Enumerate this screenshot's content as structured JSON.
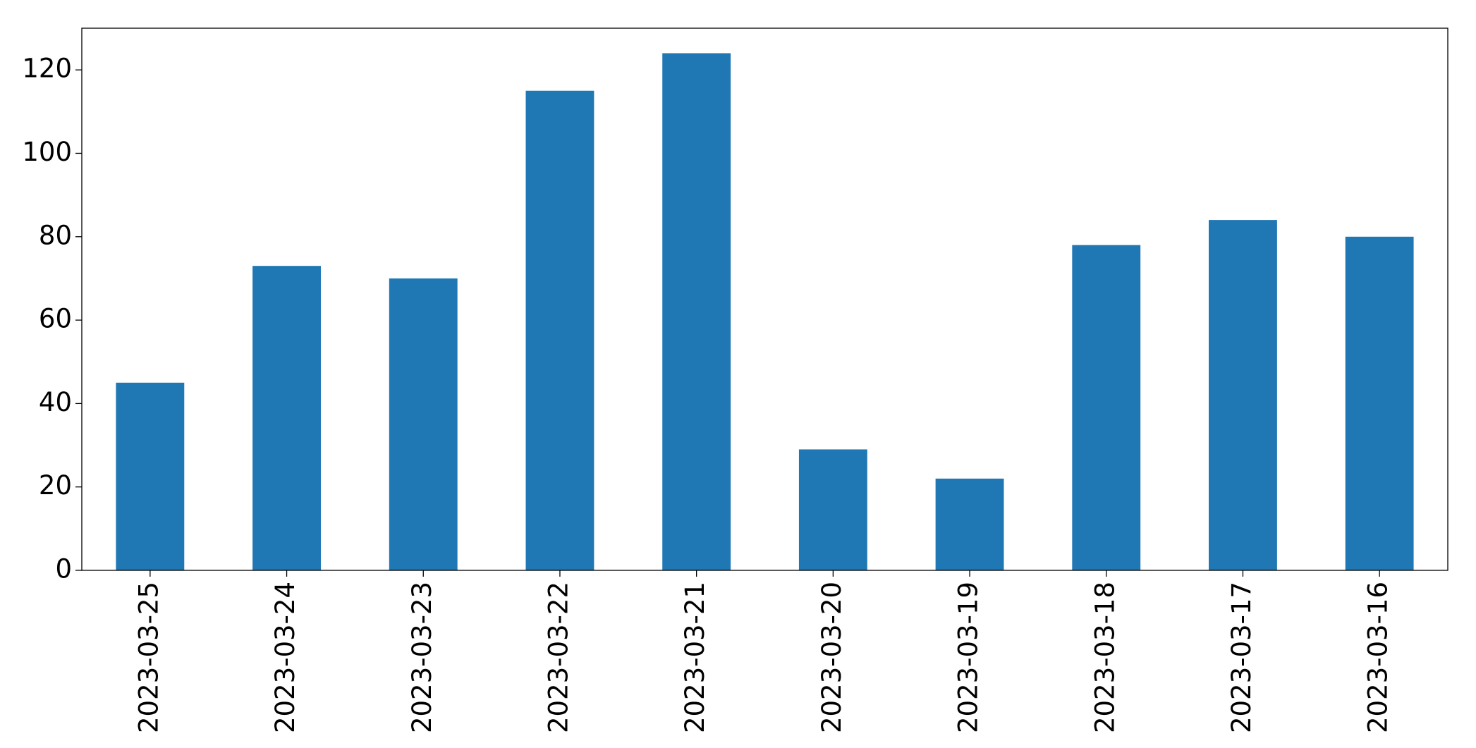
{
  "chart_data": {
    "type": "bar",
    "categories": [
      "2023-03-25",
      "2023-03-24",
      "2023-03-23",
      "2023-03-22",
      "2023-03-21",
      "2023-03-20",
      "2023-03-19",
      "2023-03-18",
      "2023-03-17",
      "2023-03-16"
    ],
    "values": [
      45,
      73,
      70,
      115,
      124,
      29,
      22,
      78,
      84,
      80
    ],
    "color": "#1f77b4",
    "ylim": [
      0,
      130
    ],
    "yticks": [
      0,
      20,
      40,
      60,
      80,
      100,
      120
    ],
    "grid": false
  }
}
